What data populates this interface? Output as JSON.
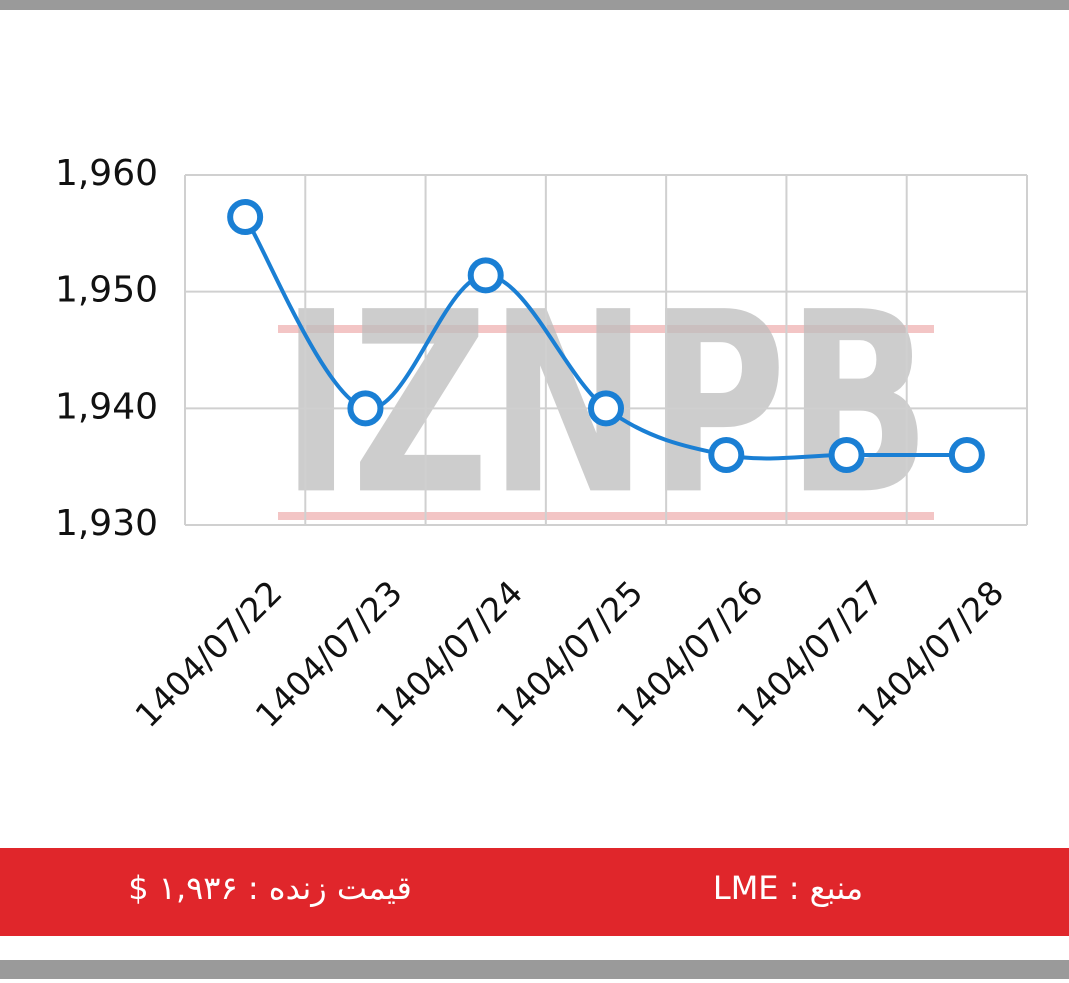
{
  "chart_data": {
    "type": "line",
    "categories": [
      "1404/07/22",
      "1404/07/23",
      "1404/07/24",
      "1404/07/25",
      "1404/07/26",
      "1404/07/27",
      "1404/07/28"
    ],
    "series": [
      {
        "color": "#1a7fd4",
        "values": [
          1956.4,
          1940,
          1951.4,
          1940,
          1936,
          1936,
          1936
        ]
      }
    ],
    "ylim": [
      1930,
      1960
    ],
    "yticks": [
      {
        "value": 1930,
        "label": "1,930"
      },
      {
        "value": 1940,
        "label": "1,940"
      },
      {
        "value": 1950,
        "label": "1,950"
      },
      {
        "value": 1960,
        "label": "1,960"
      }
    ],
    "grid": true,
    "smooth": true,
    "watermark": "IZNPB"
  },
  "footer": {
    "price": "قیمت زنده : ۱,۹۳۶ $",
    "source": "منبع : LME"
  }
}
